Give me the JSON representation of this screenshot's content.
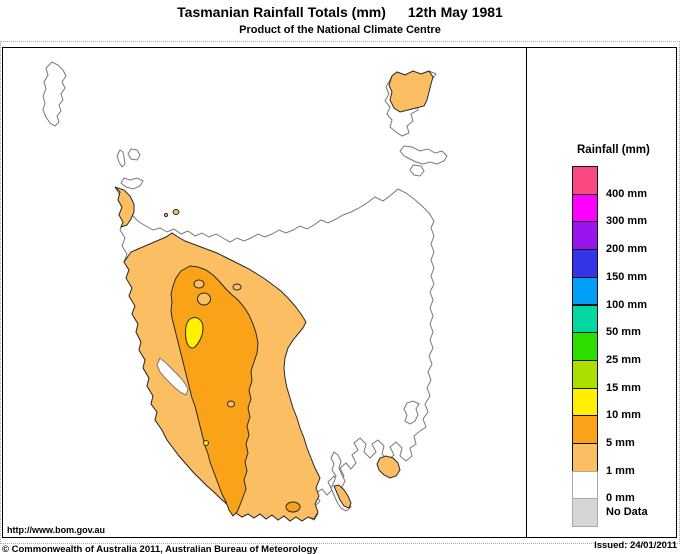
{
  "header": {
    "title": "Tasmanian Rainfall Totals (mm)",
    "date": "12th May 1981",
    "subtitle": "Product of the National Climate Centre"
  },
  "legend": {
    "title": "Rainfall (mm)",
    "entries": [
      {
        "label": "400 mm",
        "color": "#F8487F"
      },
      {
        "label": "300 mm",
        "color": "#FF00FF"
      },
      {
        "label": "200 mm",
        "color": "#9A14EE"
      },
      {
        "label": "150 mm",
        "color": "#3634E8"
      },
      {
        "label": "100 mm",
        "color": "#00A0F8"
      },
      {
        "label": "50 mm",
        "color": "#00D8A0"
      },
      {
        "label": "25 mm",
        "color": "#2CDE00"
      },
      {
        "label": "15 mm",
        "color": "#AADF00"
      },
      {
        "label": "10 mm",
        "color": "#FFF000"
      },
      {
        "label": "5 mm",
        "color": "#FBA318"
      },
      {
        "label": "1 mm",
        "color": "#FBBE62"
      },
      {
        "label": "0 mm",
        "color": "#FFFFFF"
      },
      {
        "label": "No Data",
        "color": "#D6D6D6"
      }
    ]
  },
  "map": {
    "colors": {
      "rain_1_to_5mm": "#FBBE62",
      "rain_5_to_10mm": "#FBA318",
      "rain_10_to_15mm": "#FFF000",
      "sea_and_no_rain": "#FFFFFF"
    },
    "features": [
      "king-island",
      "hunter-island-group",
      "tasmania-mainland",
      "flinders-island",
      "cape-barren-island",
      "clarke-island",
      "maria-island",
      "bruny-island",
      "macquarie-harbour"
    ]
  },
  "footer": {
    "url": "http://www.bom.gov.au",
    "copyright": "© Commonwealth of Australia 2011, Australian Bureau of Meteorology",
    "issued": "Issued: 24/01/2011"
  }
}
